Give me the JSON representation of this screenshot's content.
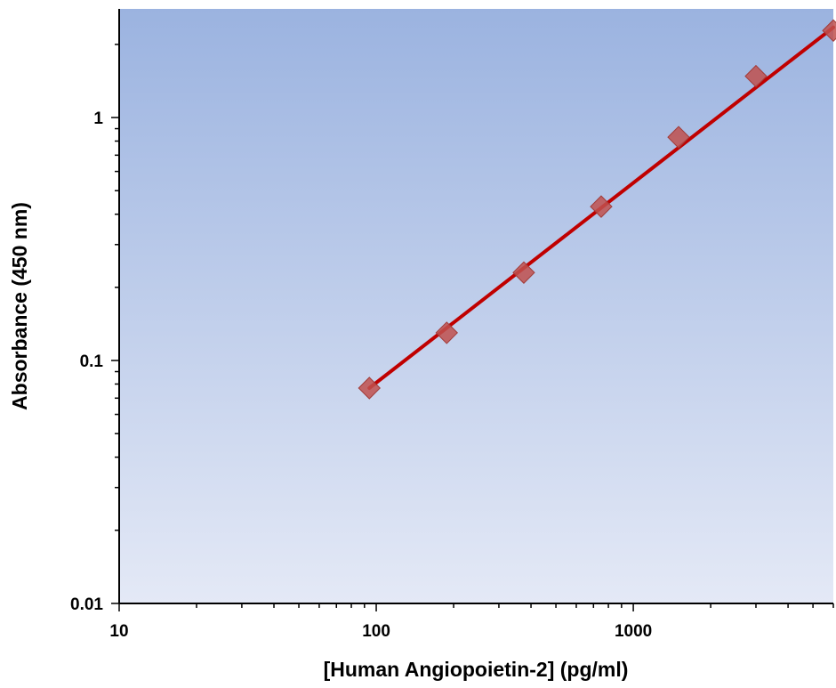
{
  "chart_data": {
    "type": "scatter",
    "title": "",
    "xlabel": "[Human Angiopoietin-2] (pg/ml)",
    "ylabel": "Absorbance (450 nm)",
    "x_scale": "log",
    "y_scale": "log",
    "xlim": [
      10,
      6000
    ],
    "ylim": [
      0.01,
      2.8
    ],
    "x_ticks": [
      {
        "value": 10,
        "label": "10"
      },
      {
        "value": 100,
        "label": "100"
      },
      {
        "value": 1000,
        "label": "1000"
      }
    ],
    "y_ticks": [
      {
        "value": 0.01,
        "label": "0.01"
      },
      {
        "value": 0.1,
        "label": "0.1"
      },
      {
        "value": 1,
        "label": "1"
      }
    ],
    "grid": false,
    "legend": "none",
    "colors": {
      "plot_bg_top": "#9bb3e0",
      "plot_bg_bottom": "#e4e9f6",
      "marker": "#c0504d",
      "fit_line": "#c00000"
    },
    "series": [
      {
        "marker": "diamond",
        "x": [
          94,
          188,
          375,
          750,
          1500,
          3000,
          6000
        ],
        "y": [
          0.077,
          0.13,
          0.23,
          0.43,
          0.83,
          1.48,
          2.28
        ]
      }
    ],
    "fit_line": {
      "x": [
        94,
        6000
      ],
      "y": [
        0.077,
        2.35
      ]
    }
  }
}
